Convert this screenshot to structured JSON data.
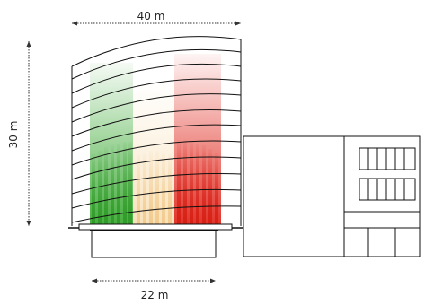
{
  "dimensions": {
    "width_label": "40 m",
    "height_label": "30 m",
    "base_label": "22 m"
  },
  "colors": {
    "left_zone": "#3aa832",
    "right_zone": "#e0261b",
    "center_zone": "#f6d9a8",
    "lines": "#111111",
    "dimension_lines": "#333333"
  }
}
